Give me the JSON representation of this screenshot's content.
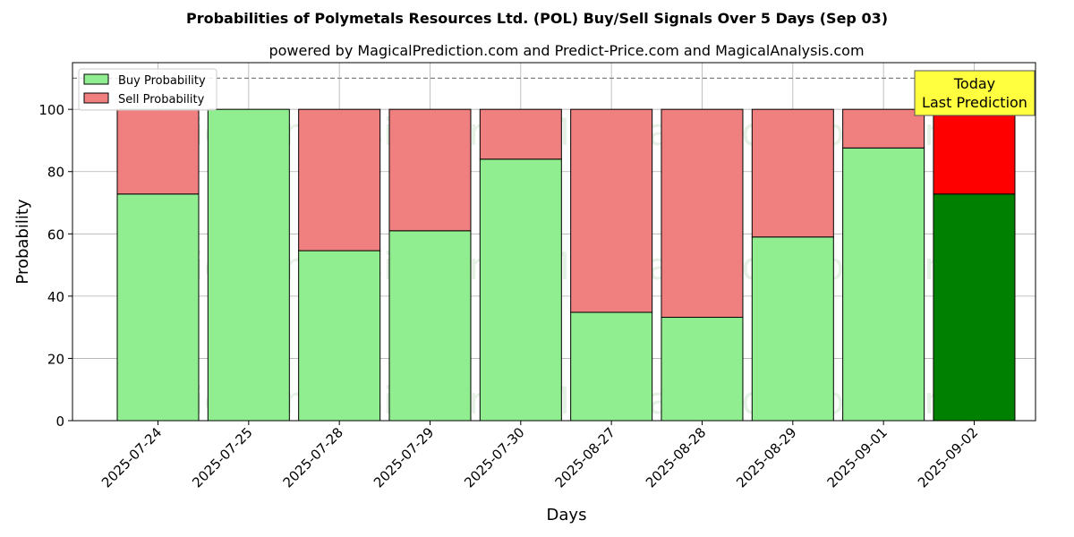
{
  "chart_data": {
    "type": "bar",
    "stacked": true,
    "title": "Probabilities of Polymetals Resources Ltd. (POL) Buy/Sell Signals Over 5 Days (Sep 03)",
    "subtitle": "powered by MagicalPrediction.com and Predict-Price.com and MagicalAnalysis.com",
    "xlabel": "Days",
    "ylabel": "Probability",
    "ylim": [
      0,
      115
    ],
    "yticks": [
      0,
      20,
      40,
      60,
      80,
      100
    ],
    "grid": true,
    "legend_position": "top-left",
    "categories": [
      "2025-07-24",
      "2025-07-25",
      "2025-07-28",
      "2025-07-29",
      "2025-07-30",
      "2025-08-27",
      "2025-08-28",
      "2025-08-29",
      "2025-09-01",
      "2025-09-02"
    ],
    "series": [
      {
        "name": "Buy Probability",
        "color": "#90ee90",
        "values": [
          72.8,
          100,
          54.6,
          61.0,
          84.0,
          34.8,
          33.2,
          59.0,
          87.6,
          72.8
        ]
      },
      {
        "name": "Sell Probability",
        "color": "#f08080",
        "values": [
          27.2,
          0,
          45.4,
          39.0,
          16.0,
          65.2,
          66.8,
          41.0,
          12.4,
          27.2
        ]
      }
    ],
    "highlight": {
      "index": 9,
      "buy_color": "#008000",
      "sell_color": "#ff0000"
    },
    "reference_line": {
      "y": 110,
      "style": "dashed",
      "color": "#808080"
    },
    "annotation": {
      "lines": [
        "Today",
        "Last Prediction"
      ],
      "background": "#ffff40"
    },
    "watermarks": [
      "MagicalAnalysis.com",
      "MagicalPrediction.com"
    ]
  }
}
